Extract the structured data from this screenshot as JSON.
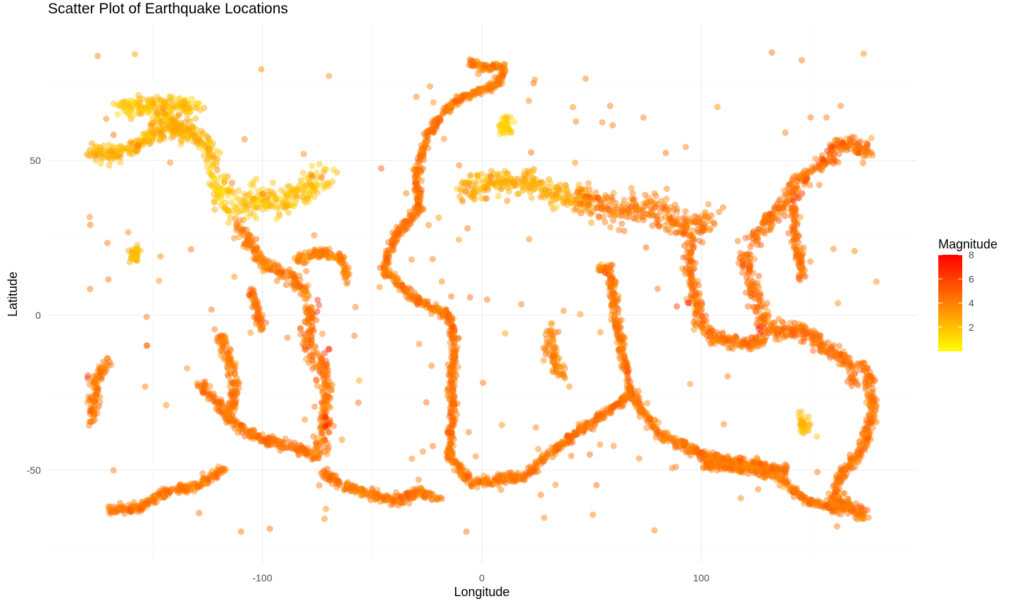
{
  "chart_data": {
    "type": "scatter",
    "title": "Scatter Plot of Earthquake Locations",
    "xlabel": "Longitude",
    "ylabel": "Latitude",
    "xlim": [
      -180,
      180
    ],
    "ylim": [
      -75,
      87
    ],
    "x_ticks": [
      -100,
      0,
      100
    ],
    "y_ticks": [
      -50,
      0,
      50
    ],
    "grid": true,
    "legend": {
      "title": "Magnitude",
      "position": "right",
      "type": "colorbar",
      "range": [
        0,
        8
      ],
      "ticks": [
        2,
        4,
        6,
        8
      ],
      "low_color": "#FFFF00",
      "high_color": "#FF0000"
    },
    "point_alpha": 0.45,
    "series": [
      {
        "zones": [
          {
            "path": [
              [
                -180,
                53
              ],
              [
                -170,
                52
              ],
              [
                -160,
                54
              ],
              [
                -150,
                58
              ],
              [
                -140,
                60
              ],
              [
                -135,
                58
              ]
            ],
            "spread": 1.6,
            "mag": 2.5
          },
          {
            "path": [
              [
                -165,
                67
              ],
              [
                -155,
                68
              ],
              [
                -145,
                68
              ],
              [
                -135,
                68
              ],
              [
                -130,
                65
              ]
            ],
            "spread": 2.0,
            "mag": 2.0
          },
          {
            "path": [
              [
                -150,
                64
              ],
              [
                -140,
                62
              ],
              [
                -135,
                60
              ],
              [
                -125,
                55
              ],
              [
                -122,
                49
              ]
            ],
            "spread": 1.5,
            "mag": 2.5
          },
          {
            "path": [
              [
                -125,
                45
              ],
              [
                -120,
                40
              ],
              [
                -115,
                36
              ],
              [
                -112,
                33
              ]
            ],
            "spread": 3.0,
            "mag": 1.8
          },
          {
            "path": [
              [
                -110,
                38
              ],
              [
                -100,
                36
              ],
              [
                -90,
                38
              ],
              [
                -80,
                40
              ],
              [
                -70,
                45
              ]
            ],
            "spread": 3.0,
            "mag": 2.0
          },
          {
            "path": [
              [
                -112,
                30
              ],
              [
                -105,
                22
              ],
              [
                -100,
                17
              ],
              [
                -92,
                14
              ],
              [
                -85,
                11
              ],
              [
                -80,
                7
              ]
            ],
            "spread": 1.4,
            "mag": 4.2
          },
          {
            "path": [
              [
                -85,
                18
              ],
              [
                -75,
                20
              ],
              [
                -65,
                19
              ],
              [
                -62,
                15
              ],
              [
                -62,
                11
              ]
            ],
            "spread": 1.0,
            "mag": 4.0
          },
          {
            "path": [
              [
                -80,
                4
              ],
              [
                -78,
                -2
              ],
              [
                -80,
                -6
              ],
              [
                -77,
                -12
              ],
              [
                -72,
                -18
              ],
              [
                -71,
                -25
              ],
              [
                -71,
                -33
              ],
              [
                -73,
                -40
              ],
              [
                -75,
                -46
              ]
            ],
            "spread": 1.6,
            "mag": 4.5
          },
          {
            "path": [
              [
                -73,
                -50
              ],
              [
                -65,
                -54
              ],
              [
                -55,
                -57
              ],
              [
                -40,
                -60
              ],
              [
                -28,
                -57
              ],
              [
                -20,
                -59
              ]
            ],
            "spread": 1.0,
            "mag": 4.3
          },
          {
            "path": [
              [
                -128,
                -22
              ],
              [
                -115,
                -33
              ],
              [
                -110,
                -36
              ],
              [
                -100,
                -40
              ],
              [
                -80,
                -44
              ],
              [
                -76,
                -46
              ]
            ],
            "spread": 1.0,
            "mag": 4.4
          },
          {
            "path": [
              [
                -120,
                -5
              ],
              [
                -115,
                -15
              ],
              [
                -112,
                -25
              ],
              [
                -115,
                -32
              ]
            ],
            "spread": 1.2,
            "mag": 4.2
          },
          {
            "path": [
              [
                -105,
                8
              ],
              [
                -102,
                0
              ],
              [
                -100,
                -5
              ]
            ],
            "spread": 1.0,
            "mag": 4.3
          },
          {
            "path": [
              [
                -170,
                -15
              ],
              [
                -175,
                -20
              ],
              [
                -177,
                -28
              ],
              [
                -178,
                -35
              ]
            ],
            "spread": 1.3,
            "mag": 4.3
          },
          {
            "path": [
              [
                -170,
                -63
              ],
              [
                -155,
                -62
              ],
              [
                -145,
                -57
              ],
              [
                -130,
                -55
              ],
              [
                -118,
                -50
              ]
            ],
            "spread": 0.9,
            "mag": 4.3
          },
          {
            "path": [
              [
                -15,
                68
              ],
              [
                -25,
                58
              ],
              [
                -30,
                45
              ],
              [
                -28,
                35
              ],
              [
                -40,
                25
              ],
              [
                -45,
                15
              ],
              [
                -30,
                5
              ],
              [
                -15,
                0
              ],
              [
                -12,
                -8
              ],
              [
                -14,
                -20
              ],
              [
                -13,
                -30
              ],
              [
                -15,
                -45
              ],
              [
                -10,
                -50
              ],
              [
                -5,
                -54
              ],
              [
                10,
                -53
              ],
              [
                20,
                -52
              ],
              [
                30,
                -45
              ],
              [
                45,
                -37
              ],
              [
                55,
                -32
              ],
              [
                65,
                -27
              ],
              [
                70,
                -25
              ]
            ],
            "spread": 0.9,
            "mag": 4.4
          },
          {
            "path": [
              [
                -5,
                82
              ],
              [
                0,
                80
              ],
              [
                10,
                80
              ],
              [
                8,
                75
              ],
              [
                -10,
                70
              ],
              [
                -15,
                67
              ]
            ],
            "spread": 0.8,
            "mag": 4.2
          },
          {
            "path": [
              [
                68,
                -25
              ],
              [
                65,
                -15
              ],
              [
                62,
                -5
              ],
              [
                60,
                5
              ],
              [
                58,
                15
              ],
              [
                53,
                15
              ]
            ],
            "spread": 0.9,
            "mag": 4.3
          },
          {
            "path": [
              [
                70,
                -27
              ],
              [
                80,
                -38
              ],
              [
                100,
                -45
              ],
              [
                120,
                -48
              ],
              [
                140,
                -50
              ]
            ],
            "spread": 1.0,
            "mag": 4.3
          },
          {
            "path": [
              [
                -10,
                40
              ],
              [
                0,
                42
              ],
              [
                10,
                44
              ],
              [
                20,
                43
              ],
              [
                30,
                40
              ],
              [
                40,
                38
              ],
              [
                50,
                37
              ]
            ],
            "spread": 2.3,
            "mag": 2.6
          },
          {
            "path": [
              [
                45,
                38
              ],
              [
                55,
                35
              ],
              [
                65,
                34
              ],
              [
                75,
                35
              ],
              [
                85,
                30
              ],
              [
                95,
                28
              ],
              [
                105,
                32
              ]
            ],
            "spread": 2.8,
            "mag": 4.3
          },
          {
            "path": [
              [
                95,
                25
              ],
              [
                95,
                15
              ],
              [
                97,
                5
              ],
              [
                100,
                -3
              ],
              [
                105,
                -7
              ],
              [
                115,
                -9
              ],
              [
                125,
                -9
              ],
              [
                130,
                -6
              ]
            ],
            "spread": 1.5,
            "mag": 4.4
          },
          {
            "path": [
              [
                120,
                20
              ],
              [
                123,
                10
              ],
              [
                126,
                4
              ],
              [
                128,
                -2
              ],
              [
                135,
                -5
              ],
              [
                140,
                -5
              ],
              [
                150,
                -6
              ],
              [
                155,
                -10
              ],
              [
                165,
                -14
              ],
              [
                168,
                -18
              ],
              [
                170,
                -22
              ]
            ],
            "spread": 1.6,
            "mag": 4.5
          },
          {
            "path": [
              [
                123,
                24
              ],
              [
                130,
                30
              ],
              [
                135,
                34
              ],
              [
                140,
                38
              ],
              [
                143,
                43
              ],
              [
                150,
                46
              ],
              [
                157,
                50
              ],
              [
                162,
                55
              ],
              [
                170,
                55
              ],
              [
                178,
                52
              ]
            ],
            "spread": 1.6,
            "mag": 4.5
          },
          {
            "path": [
              [
                142,
                35
              ],
              [
                143,
                25
              ],
              [
                145,
                18
              ],
              [
                146,
                12
              ]
            ],
            "spread": 1.1,
            "mag": 4.5
          },
          {
            "path": [
              [
                173,
                -16
              ],
              [
                177,
                -20
              ],
              [
                178,
                -28
              ],
              [
                177,
                -35
              ],
              [
                175,
                -40
              ],
              [
                172,
                -45
              ],
              [
                165,
                -50
              ],
              [
                160,
                -58
              ],
              [
                175,
                -65
              ]
            ],
            "spread": 1.2,
            "mag": 4.4
          },
          {
            "path": [
              [
                32,
                -5
              ],
              [
                30,
                -10
              ],
              [
                34,
                -15
              ],
              [
                36,
                -20
              ]
            ],
            "spread": 1.5,
            "mag": 3.8
          },
          {
            "path": [
              [
                100,
                -48
              ],
              [
                115,
                -49
              ],
              [
                125,
                -50
              ],
              [
                135,
                -52
              ],
              [
                148,
                -60
              ],
              [
                160,
                -62
              ],
              [
                170,
                -62
              ]
            ],
            "spread": 0.9,
            "mag": 4.3
          }
        ],
        "blobs": [
          {
            "center": [
              -158,
              19.5
            ],
            "spread": 1.1,
            "mag": 2.2
          },
          {
            "center": [
              11,
              61
            ],
            "spread": 1.5,
            "mag": 1.5
          },
          {
            "center": [
              147,
              -35
            ],
            "spread": 1.5,
            "mag": 2.2
          }
        ],
        "scatter_mag": 4.2
      }
    ]
  }
}
